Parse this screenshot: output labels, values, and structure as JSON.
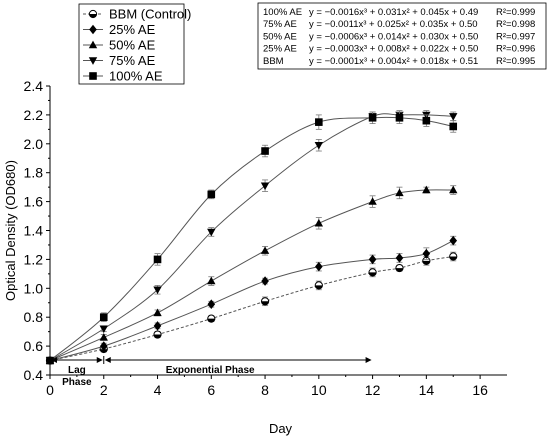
{
  "chart_data": {
    "type": "line",
    "xlabel": "Day",
    "ylabel": "Optical Density (OD680)",
    "xlim": [
      0,
      17
    ],
    "ylim": [
      0.4,
      2.4
    ],
    "x_ticks": [
      "0",
      "2",
      "4",
      "6",
      "8",
      "10",
      "12",
      "14",
      "16"
    ],
    "y_ticks": [
      "0.4",
      "0.6",
      "0.8",
      "1.0",
      "1.2",
      "1.4",
      "1.6",
      "1.8",
      "2.0",
      "2.2",
      "2.4"
    ],
    "grid": false,
    "legend_position": "top-left",
    "series": [
      {
        "name": "BBM (Control)",
        "marker": "half-circle",
        "line": "dashed",
        "x": [
          0,
          2,
          4,
          6,
          8,
          10,
          12,
          13,
          14,
          15
        ],
        "y": [
          0.5,
          0.58,
          0.68,
          0.79,
          0.91,
          1.02,
          1.11,
          1.14,
          1.19,
          1.22
        ],
        "err": [
          0.02,
          0.02,
          0.02,
          0.02,
          0.03,
          0.03,
          0.03,
          0.02,
          0.03,
          0.03
        ]
      },
      {
        "name": "25% AE",
        "marker": "diamond",
        "line": "solid",
        "x": [
          0,
          2,
          4,
          6,
          8,
          10,
          12,
          13,
          14,
          15
        ],
        "y": [
          0.5,
          0.6,
          0.74,
          0.89,
          1.05,
          1.15,
          1.2,
          1.21,
          1.24,
          1.33
        ],
        "err": [
          0.02,
          0.02,
          0.02,
          0.02,
          0.02,
          0.03,
          0.03,
          0.03,
          0.04,
          0.03
        ]
      },
      {
        "name": "50% AE",
        "marker": "triangle-up",
        "line": "solid",
        "x": [
          0,
          2,
          4,
          6,
          8,
          10,
          12,
          13,
          14,
          15
        ],
        "y": [
          0.5,
          0.66,
          0.83,
          1.05,
          1.26,
          1.45,
          1.6,
          1.66,
          1.68,
          1.68
        ],
        "err": [
          0.02,
          0.02,
          0.02,
          0.03,
          0.03,
          0.04,
          0.04,
          0.04,
          0.02,
          0.03
        ]
      },
      {
        "name": "75% AE",
        "marker": "triangle-down",
        "line": "solid",
        "x": [
          0,
          2,
          4,
          6,
          8,
          10,
          12,
          13,
          14,
          15
        ],
        "y": [
          0.5,
          0.72,
          0.99,
          1.39,
          1.71,
          1.99,
          2.19,
          2.2,
          2.2,
          2.19
        ],
        "err": [
          0.02,
          0.02,
          0.03,
          0.03,
          0.04,
          0.04,
          0.03,
          0.03,
          0.03,
          0.03
        ]
      },
      {
        "name": "100% AE",
        "marker": "square",
        "line": "solid",
        "x": [
          0,
          2,
          4,
          6,
          8,
          10,
          12,
          13,
          14,
          15
        ],
        "y": [
          0.5,
          0.8,
          1.2,
          1.65,
          1.95,
          2.15,
          2.18,
          2.18,
          2.16,
          2.12
        ],
        "err": [
          0.02,
          0.03,
          0.04,
          0.03,
          0.04,
          0.05,
          0.04,
          0.04,
          0.04,
          0.04
        ]
      }
    ],
    "equations": [
      {
        "label": "100% AE",
        "equation": "y = −0.0016x³ + 0.031x² + 0.045x + 0.49",
        "r2": "R²=0.999"
      },
      {
        "label": "75% AE",
        "equation": "y = −0.0011x³ + 0.025x² + 0.035x + 0.50",
        "r2": "R²=0.998"
      },
      {
        "label": "50% AE",
        "equation": "y = −0.0006x³ + 0.014x² + 0.030x + 0.50",
        "r2": "R²=0.997"
      },
      {
        "label": "25% AE",
        "equation": "y = −0.0003x³ + 0.008x² + 0.022x + 0.50",
        "r2": "R²=0.996"
      },
      {
        "label": "BBM",
        "equation": "y = −0.0001x³ + 0.004x² + 0.018x + 0.51",
        "r2": "R²=0.995"
      }
    ],
    "annotations": {
      "lag_phase": "Lag\nPhase",
      "exponential_phase": "Exponential Phase",
      "lag_range": [
        0,
        2
      ],
      "exponential_range": [
        2,
        12
      ]
    }
  }
}
